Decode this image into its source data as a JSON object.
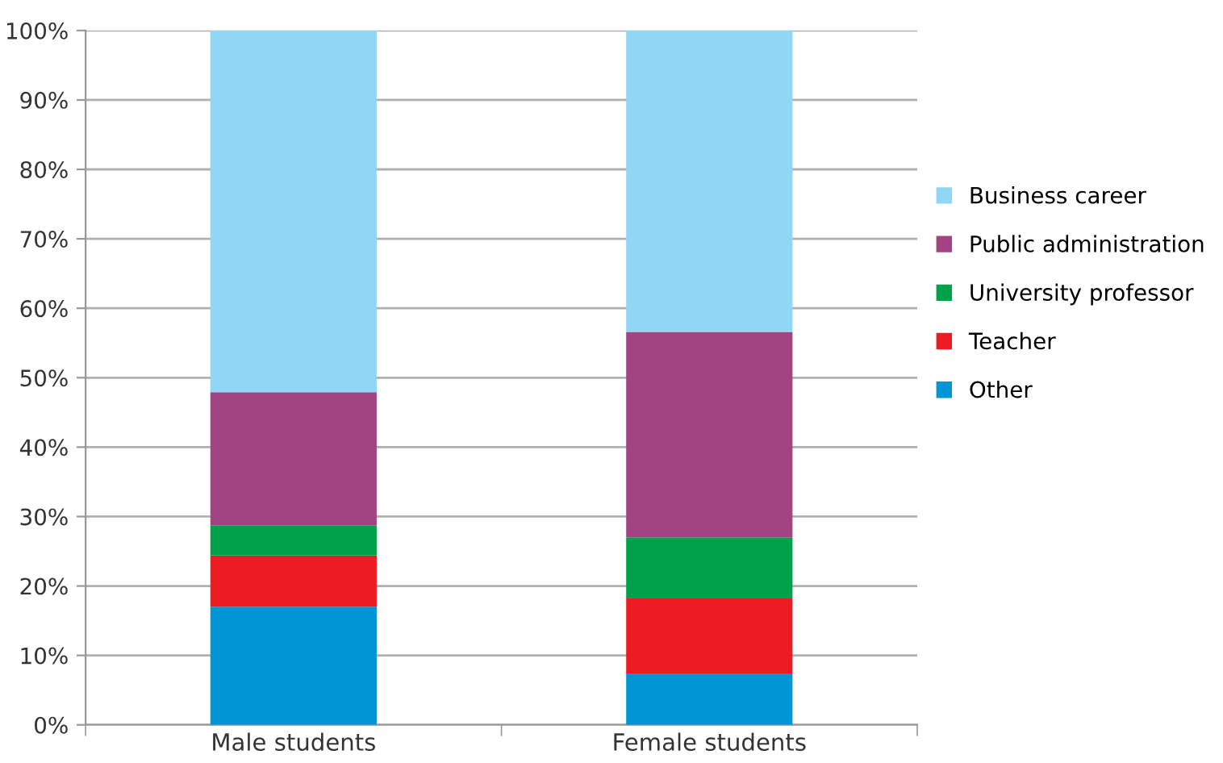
{
  "chart_data": {
    "type": "bar",
    "stacked": true,
    "categories": [
      "Male students",
      "Female students"
    ],
    "series": [
      {
        "name": "Other",
        "color": "#0096d6",
        "values": [
          17.0,
          7.4
        ]
      },
      {
        "name": "Teacher",
        "color": "#ec1c24",
        "values": [
          7.4,
          10.8
        ]
      },
      {
        "name": "University professor",
        "color": "#00a14b",
        "values": [
          4.3,
          8.8
        ]
      },
      {
        "name": "Public administration",
        "color": "#a34482",
        "values": [
          19.2,
          29.6
        ]
      },
      {
        "name": "Business career",
        "color": "#8fd7f5",
        "values": [
          52.1,
          43.4
        ]
      }
    ],
    "ylim": [
      0,
      100
    ],
    "yticks": [
      {
        "value": 0,
        "label": "0%"
      },
      {
        "value": 10,
        "label": "10%"
      },
      {
        "value": 20,
        "label": "20%"
      },
      {
        "value": 30,
        "label": "30%"
      },
      {
        "value": 40,
        "label": "40%"
      },
      {
        "value": 50,
        "label": "50%"
      },
      {
        "value": 60,
        "label": "60%"
      },
      {
        "value": 70,
        "label": "70%"
      },
      {
        "value": 80,
        "label": "80%"
      },
      {
        "value": 90,
        "label": "90%"
      },
      {
        "value": 100,
        "label": "100%"
      }
    ],
    "grid": "y",
    "legend": "right"
  }
}
